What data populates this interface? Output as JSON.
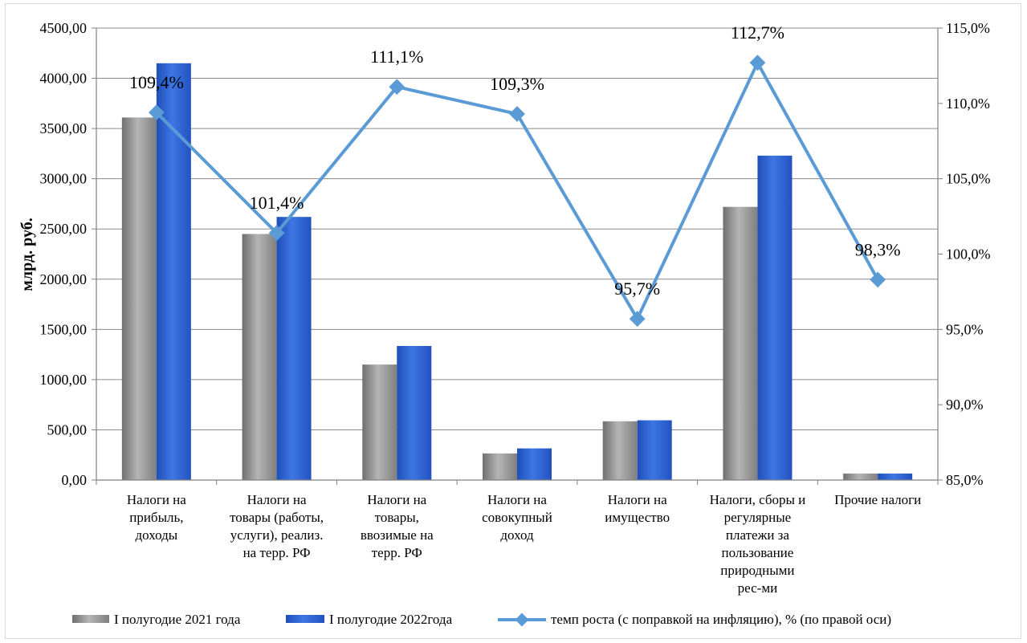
{
  "chart_data": {
    "type": "bar",
    "ylabel": "млрд. руб.",
    "ylim": [
      0,
      4500
    ],
    "y_ticks": [
      "0,00",
      "500,00",
      "1000,00",
      "1500,00",
      "2000,00",
      "2500,00",
      "3000,00",
      "3500,00",
      "4000,00",
      "4500,00"
    ],
    "y2lim": [
      85,
      115
    ],
    "y2_ticks": [
      "85,0%",
      "90,0%",
      "95,0%",
      "100,0%",
      "105,0%",
      "110,0%",
      "115,0%"
    ],
    "grid": true,
    "legend_position": "bottom",
    "categories": [
      [
        "Налоги на",
        "прибыль,",
        "доходы"
      ],
      [
        "Налоги на",
        "товары (работы,",
        "услуги), реализ.",
        "на терр. РФ"
      ],
      [
        "Налоги на",
        "товары,",
        "ввозимые на",
        "терр. РФ"
      ],
      [
        "Налоги на",
        "совокупный",
        "доход"
      ],
      [
        "Налоги на",
        "имущество"
      ],
      [
        "Налоги, сборы и",
        "регулярные",
        "платежи  за",
        "пользование",
        "природными",
        "рес-ми"
      ],
      [
        "Прочие налоги"
      ]
    ],
    "series": [
      {
        "name": "I полугодие 2021 года",
        "kind": "bar",
        "color": "#8c8c8c",
        "values": [
          3610,
          2450,
          1150,
          265,
          585,
          2720,
          65
        ]
      },
      {
        "name": "I полугодие 2022года",
        "kind": "bar",
        "color": "#2f62d2",
        "values": [
          4150,
          2620,
          1335,
          315,
          595,
          3230,
          65
        ]
      },
      {
        "name": "темп роста (с поправкой  на инфляцию),  % (по правой оси)",
        "kind": "line",
        "axis": "right",
        "color": "#5b9bd5",
        "values": [
          109.4,
          101.4,
          111.1,
          109.3,
          95.7,
          112.7,
          98.3
        ],
        "labels": [
          "109,4%",
          "101,4%",
          "111,1%",
          "109,3%",
          "95,7%",
          "112,7%",
          "98,3%"
        ]
      }
    ]
  }
}
